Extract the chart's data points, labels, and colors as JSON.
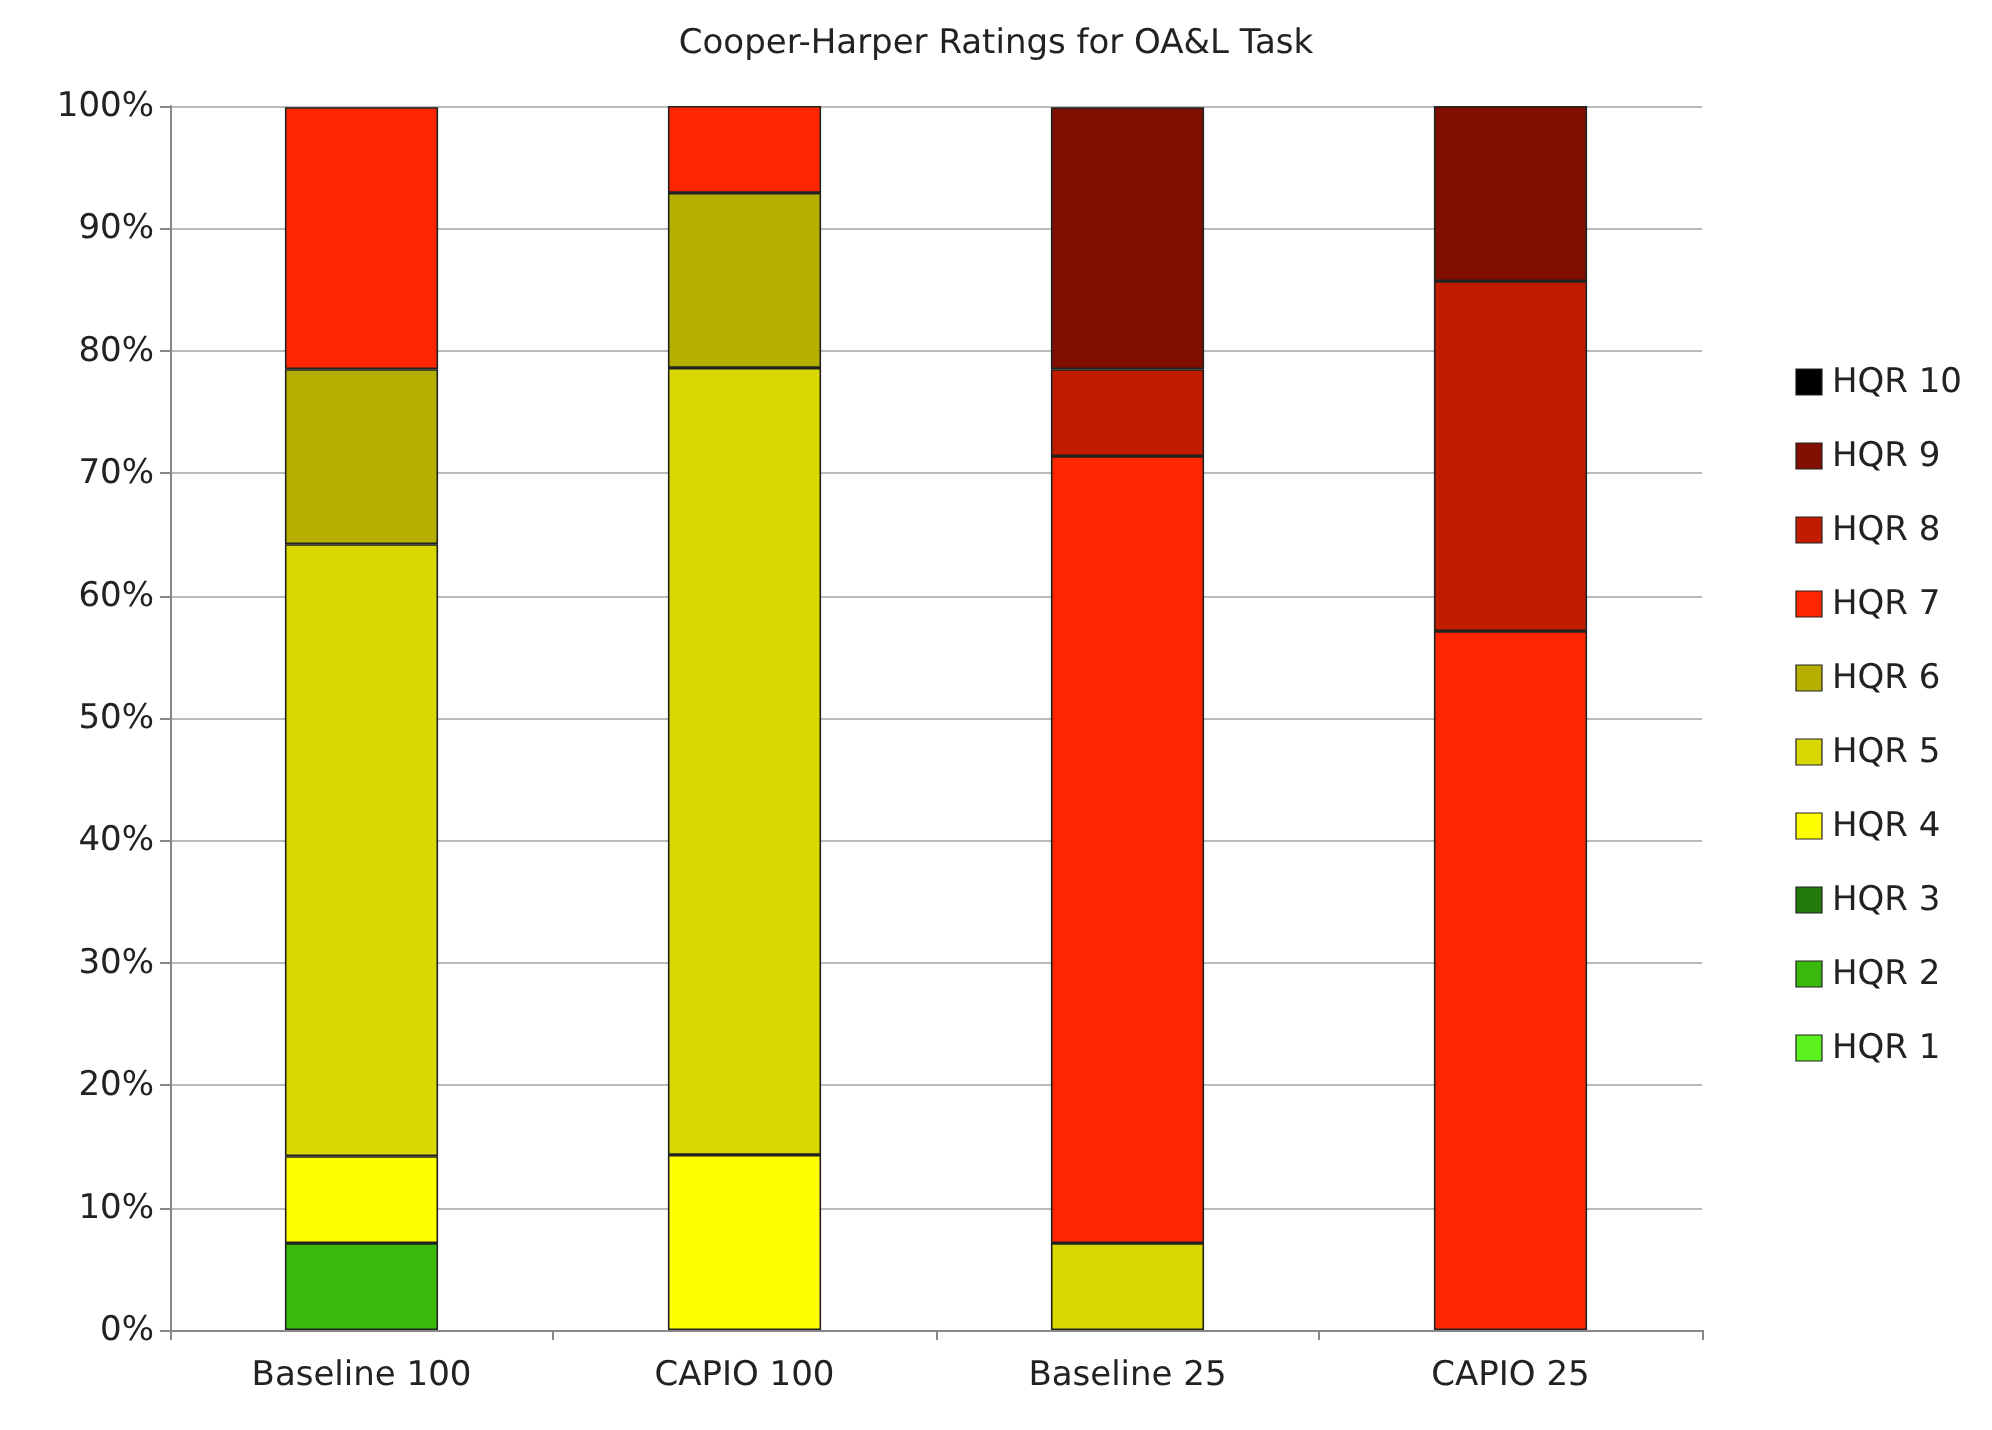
{
  "chart_data": {
    "type": "bar",
    "title": "Cooper-Harper Ratings for OA&L Task",
    "categories": [
      "Baseline 100",
      "CAPIO 100",
      "Baseline 25",
      "CAPIO 25"
    ],
    "stacked": true,
    "ylim": [
      0,
      100
    ],
    "yticks": [
      {
        "value": 0,
        "label": "0%"
      },
      {
        "value": 10,
        "label": "10%"
      },
      {
        "value": 20,
        "label": "20%"
      },
      {
        "value": 30,
        "label": "30%"
      },
      {
        "value": 40,
        "label": "40%"
      },
      {
        "value": 50,
        "label": "50%"
      },
      {
        "value": 60,
        "label": "60%"
      },
      {
        "value": 70,
        "label": "70%"
      },
      {
        "value": 80,
        "label": "80%"
      },
      {
        "value": 90,
        "label": "90%"
      },
      {
        "value": 100,
        "label": "100%"
      }
    ],
    "grid": "y",
    "legend": "right",
    "series": [
      {
        "name": "HQR 1",
        "color": "#5cf21d",
        "values": [
          null,
          null,
          null,
          null
        ]
      },
      {
        "name": "HQR 2",
        "color": "#3ab80c",
        "values": [
          7.1,
          null,
          null,
          null
        ]
      },
      {
        "name": "HQR 3",
        "color": "#217a0a",
        "values": [
          null,
          null,
          null,
          null
        ]
      },
      {
        "name": "HQR 4",
        "color": "#ffff00",
        "values": [
          7.1,
          14.3,
          null,
          null
        ]
      },
      {
        "name": "HQR 5",
        "color": "#d8d800",
        "values": [
          50,
          64.3,
          7.1,
          null
        ]
      },
      {
        "name": "HQR 6",
        "color": "#b5b000",
        "values": [
          14.3,
          14.3,
          null,
          null
        ]
      },
      {
        "name": "HQR 7",
        "color": "#ff2600",
        "values": [
          21.4,
          7.1,
          64.3,
          57.1
        ]
      },
      {
        "name": "HQR 8",
        "color": "#c11b00",
        "values": [
          null,
          null,
          7.1,
          28.6
        ]
      },
      {
        "name": "HQR 9",
        "color": "#800f00",
        "values": [
          null,
          null,
          21.4,
          14.3
        ]
      },
      {
        "name": "HQR 10",
        "color": "#000000",
        "values": [
          null,
          null,
          null,
          null
        ]
      }
    ]
  }
}
